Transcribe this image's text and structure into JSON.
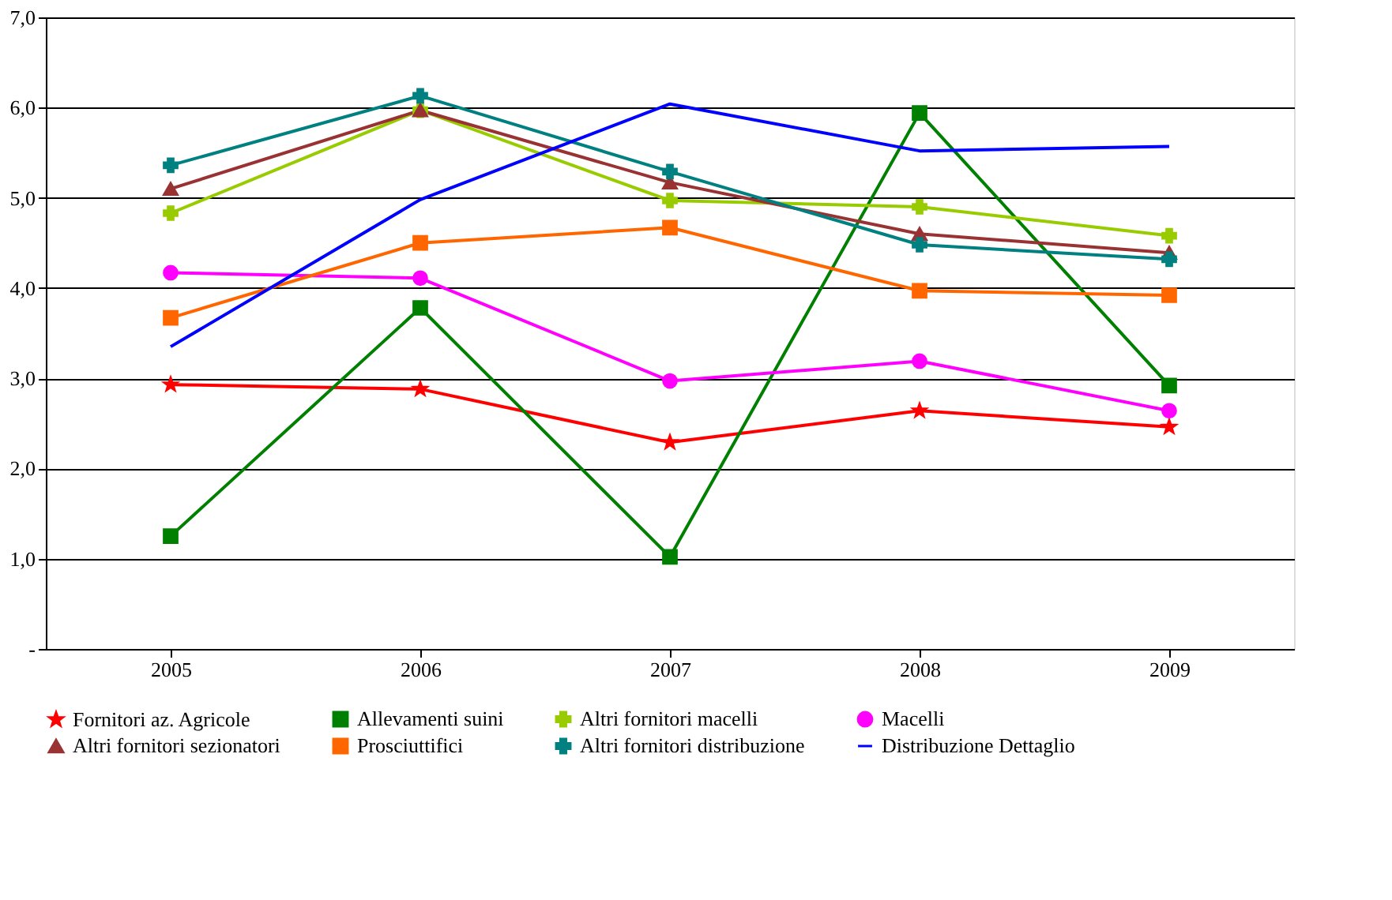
{
  "chart_data": {
    "type": "line",
    "categories": [
      "2005",
      "2006",
      "2007",
      "2008",
      "2009"
    ],
    "series": [
      {
        "name": "Fornitori az. Agricole",
        "color": "#ff0000",
        "marker": "star",
        "values": [
          2.93,
          2.88,
          2.29,
          2.64,
          2.46
        ]
      },
      {
        "name": "Allevamenti suini",
        "color": "#008000",
        "marker": "square",
        "values": [
          1.25,
          3.78,
          1.02,
          5.94,
          2.92
        ]
      },
      {
        "name": "Altri fornitori macelli",
        "color": "#99cc00",
        "marker": "cross",
        "values": [
          4.83,
          5.97,
          4.97,
          4.9,
          4.58
        ]
      },
      {
        "name": "Macelli",
        "color": "#ff00ff",
        "marker": "circle",
        "values": [
          4.17,
          4.11,
          2.97,
          3.19,
          2.64
        ]
      },
      {
        "name": "Altri fornitori sezionatori",
        "color": "#993333",
        "marker": "triangle",
        "values": [
          5.1,
          5.97,
          5.17,
          4.6,
          4.39
        ]
      },
      {
        "name": "Prosciuttifici",
        "color": "#ff6600",
        "marker": "square",
        "values": [
          3.67,
          4.5,
          4.67,
          3.97,
          3.92
        ]
      },
      {
        "name": "Altri fornitori distribuzione",
        "color": "#008080",
        "marker": "cross",
        "values": [
          5.36,
          6.13,
          5.29,
          4.48,
          4.32
        ]
      },
      {
        "name": "Distribuzione Dettaglio",
        "color": "#0000ff",
        "marker": "none",
        "values": [
          3.35,
          4.98,
          6.04,
          5.52,
          5.57
        ]
      }
    ],
    "ylim": [
      0,
      7
    ],
    "yticks": [
      {
        "value": 0,
        "label": "-"
      },
      {
        "value": 1,
        "label": "1,0"
      },
      {
        "value": 2,
        "label": "2,0"
      },
      {
        "value": 3,
        "label": "3,0"
      },
      {
        "value": 4,
        "label": "4,0"
      },
      {
        "value": 5,
        "label": "5,0"
      },
      {
        "value": 6,
        "label": "6,0"
      },
      {
        "value": 7,
        "label": "7,0"
      }
    ],
    "grid": "y",
    "legend": "bottom",
    "line_style": "solid"
  }
}
